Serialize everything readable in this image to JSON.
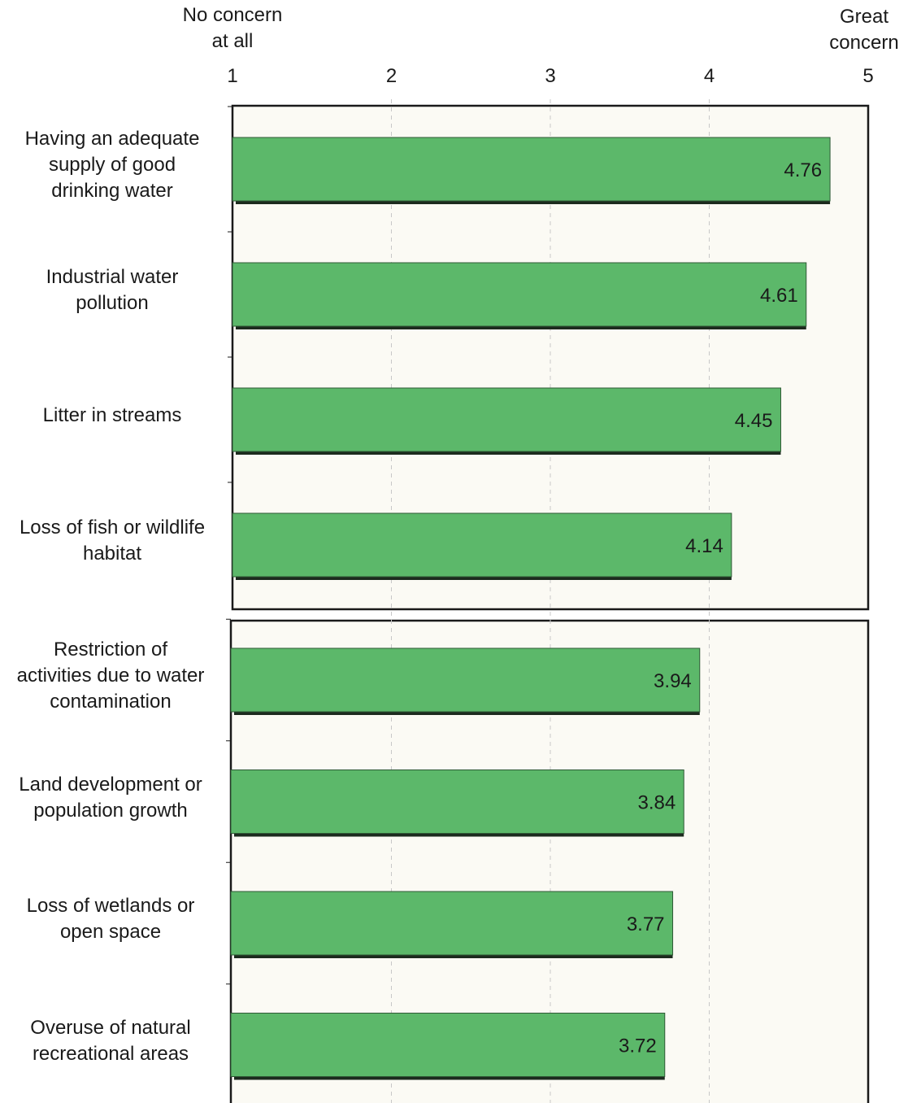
{
  "chart_data": {
    "type": "bar",
    "orientation": "horizontal",
    "axis_end_labels": {
      "low": "No concern\nat all",
      "high": "Great\nconcern"
    },
    "xlim": [
      1,
      5
    ],
    "xticks": [
      "1",
      "2",
      "3",
      "4",
      "5"
    ],
    "gridlines": "dashed vertical at 2, 3, 4",
    "bar_color": "#5cb86a",
    "panel_background": "#fbfaf4",
    "groups": [
      {
        "categories": [
          "Having an adequate\nsupply of good\ndrinking water",
          "Industrial water\npollution",
          "Litter in streams",
          "Loss of fish or wildlife\nhabitat"
        ],
        "values": [
          4.76,
          4.61,
          4.45,
          4.14
        ],
        "value_labels": [
          "4.76",
          "4.61",
          "4.45",
          "4.14"
        ]
      },
      {
        "categories": [
          "Restriction of\nactivities due to water\ncontamination",
          "Land development or\npopulation growth",
          "Loss of wetlands or\nopen space",
          "Overuse of natural\nrecreational areas"
        ],
        "values": [
          3.94,
          3.84,
          3.77,
          3.72
        ],
        "value_labels": [
          "3.94",
          "3.84",
          "3.77",
          "3.72"
        ]
      }
    ]
  }
}
